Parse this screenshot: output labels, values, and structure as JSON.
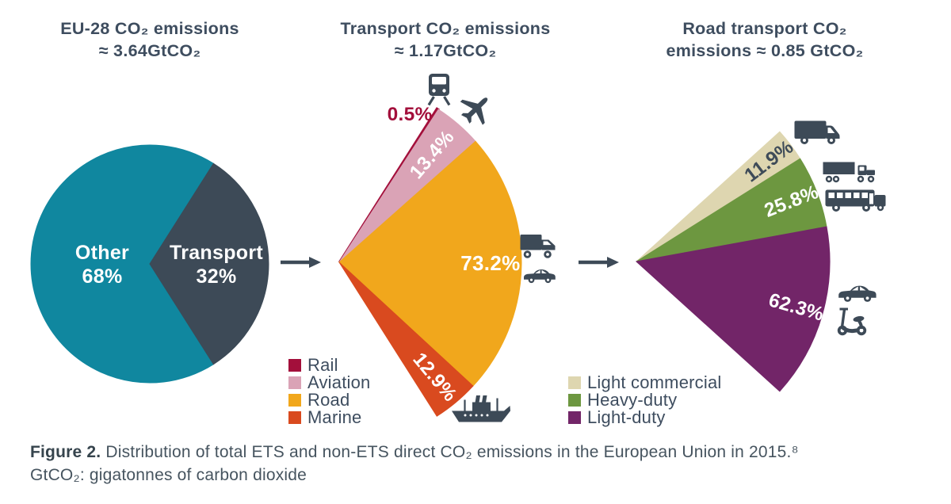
{
  "page": {
    "background": "#ffffff"
  },
  "style": {
    "text_color": "#3e4d5f",
    "icon_color": "#3d4a57",
    "arrow_color": "#3d4a57",
    "caption_color": "#46545f"
  },
  "chart_data": [
    {
      "id": "eu28",
      "type": "pie",
      "title_lines": [
        "EU-28 CO₂ emissions",
        "≈ 3.64GtCO₂"
      ],
      "approx_total_gtco2": 3.64,
      "slices": [
        {
          "label": "Other",
          "pct": 68,
          "pct_label": "68%",
          "color": "#10879f",
          "label_color": "#ffffff"
        },
        {
          "label": "Transport",
          "pct": 32,
          "pct_label": "32%",
          "color": "#3d4a57",
          "label_color": "#ffffff"
        }
      ]
    },
    {
      "id": "transport",
      "type": "fan",
      "title_lines": [
        "Transport CO₂ emissions",
        "≈ 1.17GtCO₂"
      ],
      "approx_total_gtco2": 1.17,
      "slices": [
        {
          "label": "Rail",
          "pct": 0.5,
          "pct_label": "0.5%",
          "color": "#a30f3b",
          "label_color": "#a30f3b"
        },
        {
          "label": "Aviation",
          "pct": 13.4,
          "pct_label": "13.4%",
          "color": "#daa3b6",
          "label_color": "#ffffff"
        },
        {
          "label": "Road",
          "pct": 73.2,
          "pct_label": "73.2%",
          "color": "#f1a71c",
          "label_color": "#ffffff"
        },
        {
          "label": "Marine",
          "pct": 12.9,
          "pct_label": "12.9%",
          "color": "#d94a1f",
          "label_color": "#ffffff"
        }
      ],
      "icons": [
        "train",
        "airplane",
        "truck",
        "car",
        "ship"
      ]
    },
    {
      "id": "road",
      "type": "fan",
      "title_lines": [
        "Road transport CO₂",
        "emissions ≈ 0.85 GtCO₂"
      ],
      "approx_total_gtco2": 0.85,
      "slices": [
        {
          "label": "Light commercial",
          "pct": 11.9,
          "pct_label": "11.9%",
          "color": "#ded6b0",
          "label_color": "#3e4b58"
        },
        {
          "label": "Heavy-duty",
          "pct": 25.8,
          "pct_label": "25.8%",
          "color": "#6d9740",
          "label_color": "#ffffff"
        },
        {
          "label": "Light-duty",
          "pct": 62.3,
          "pct_label": "62.3%",
          "color": "#722568",
          "label_color": "#ffffff"
        }
      ],
      "icons": [
        "delivery-van",
        "semi-truck",
        "bus",
        "car",
        "scooter"
      ]
    }
  ],
  "caption": {
    "figure_label": "Figure 2.",
    "line1": " Distribution of total ETS and non-ETS direct CO₂ emissions in the European Union in 2015.⁸",
    "line2": "GtCO₂: gigatonnes of carbon dioxide"
  }
}
